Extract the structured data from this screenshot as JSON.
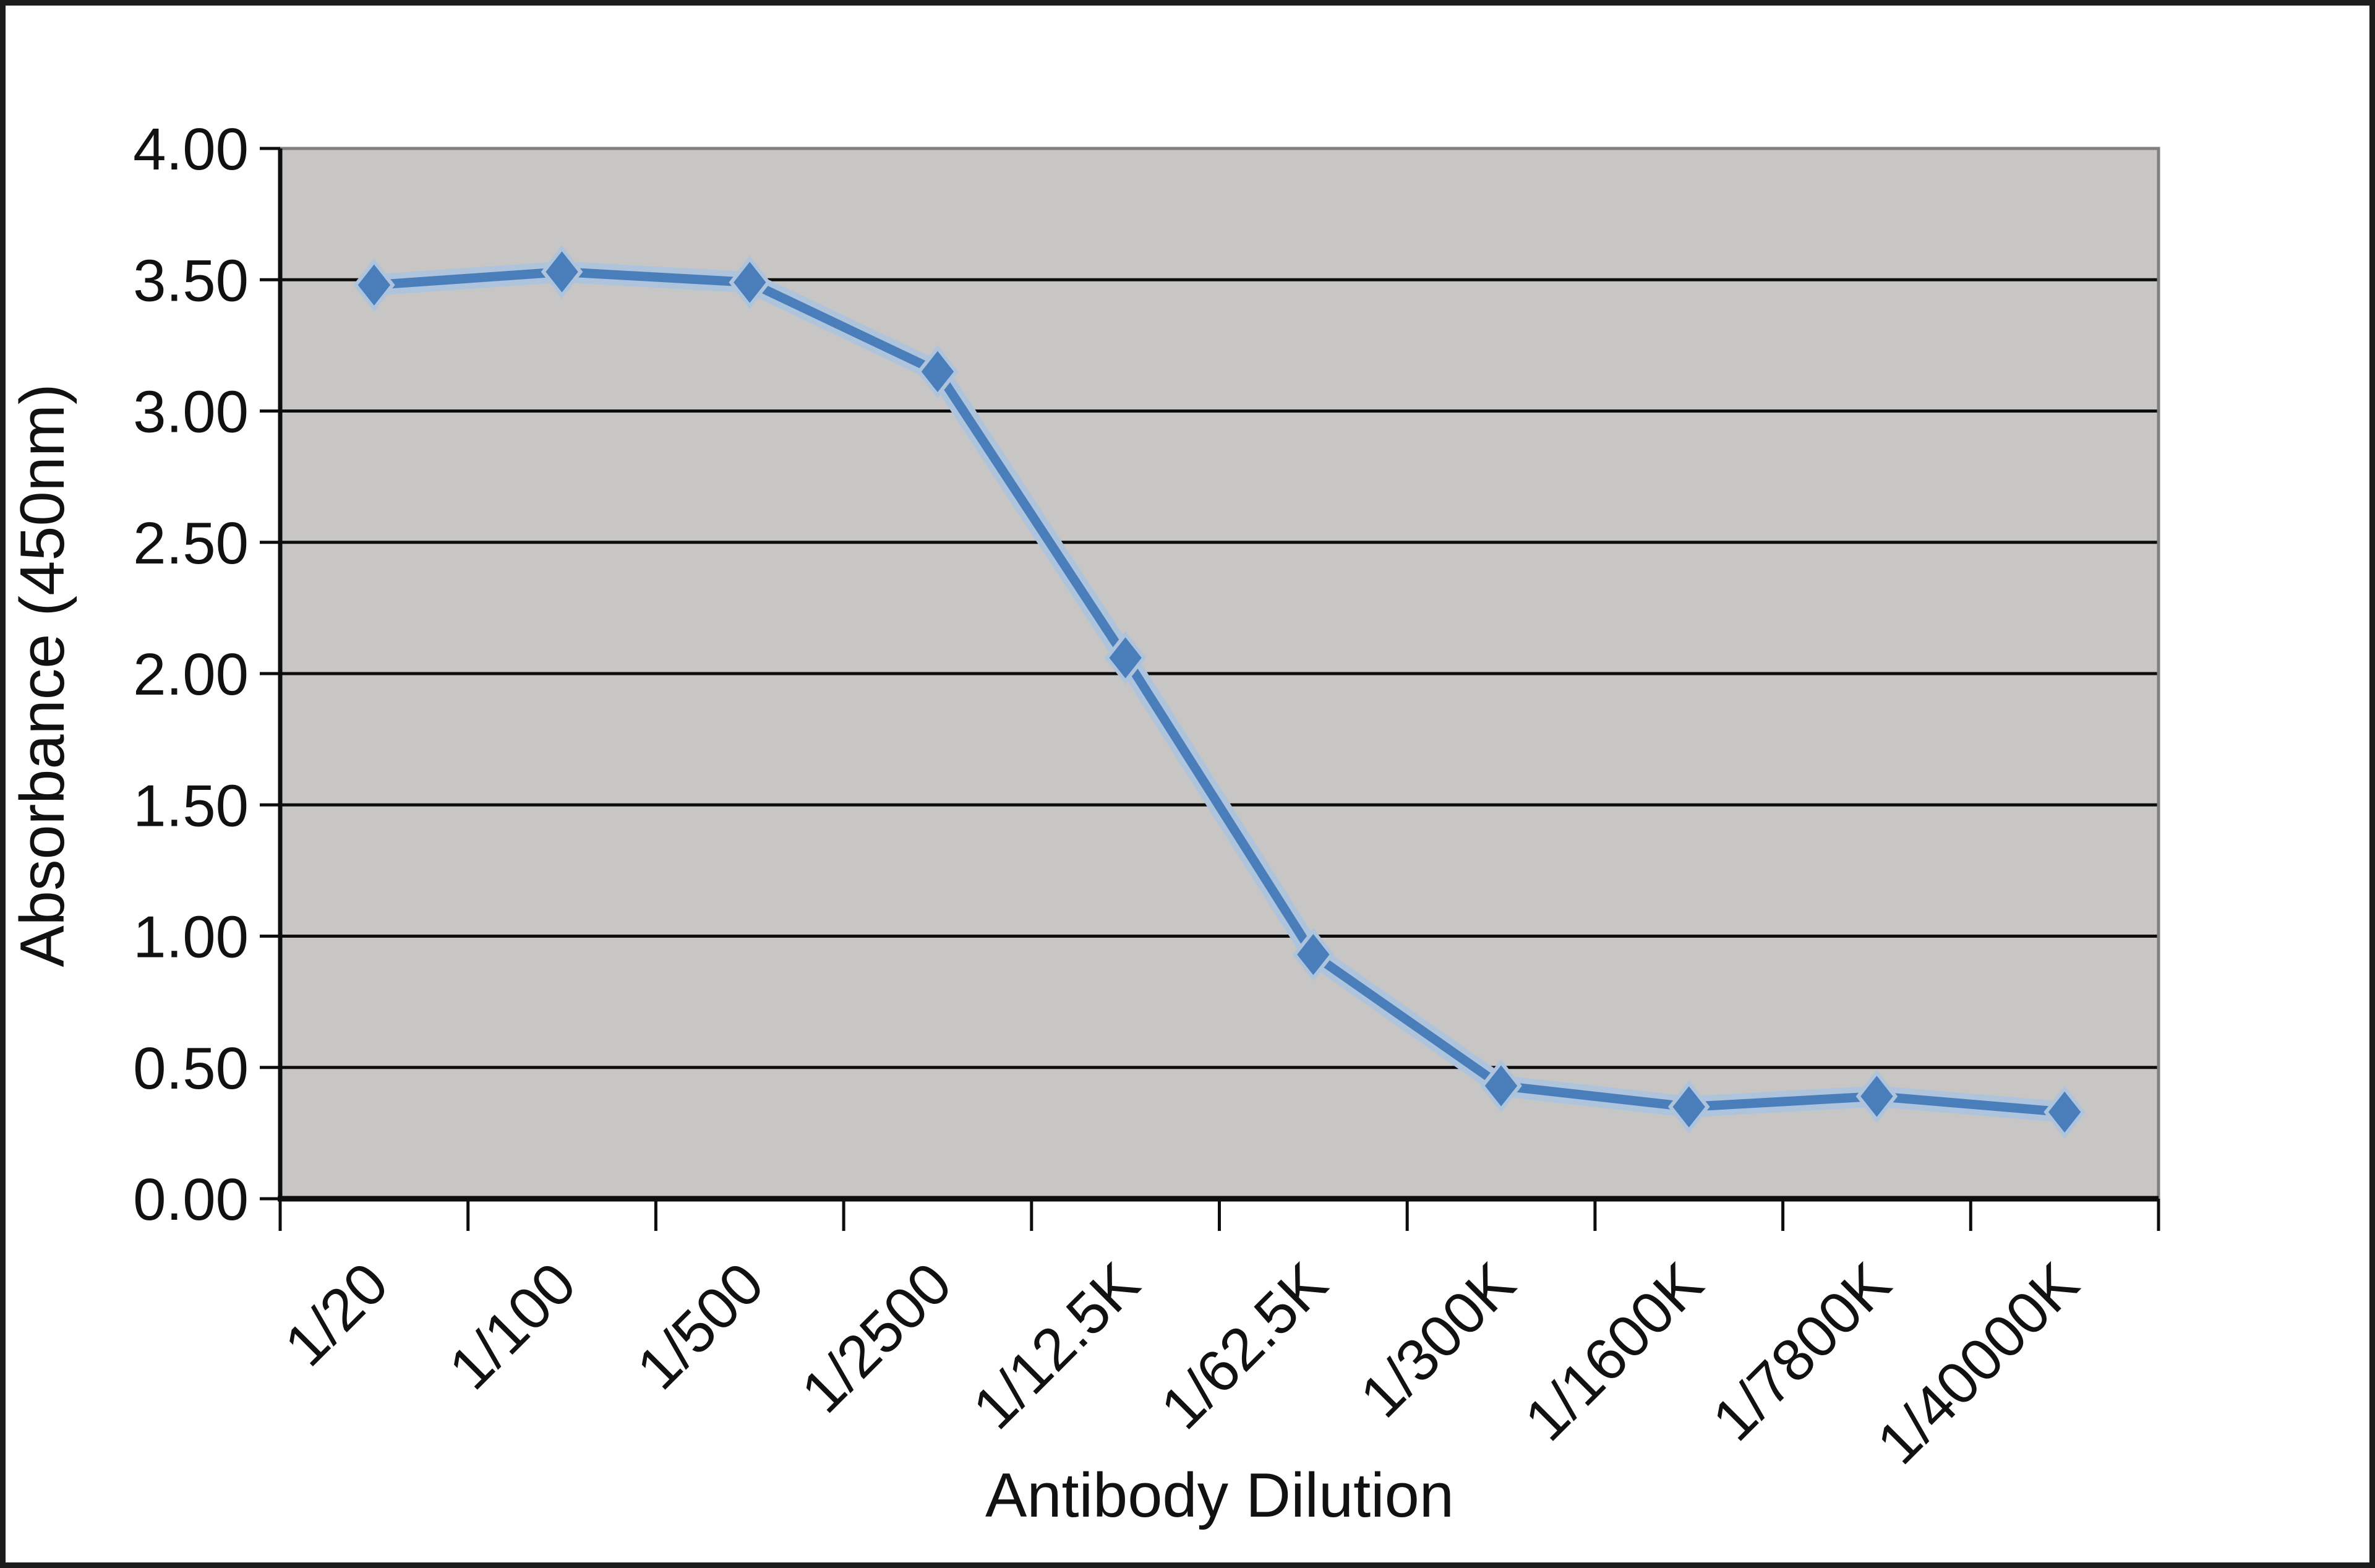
{
  "chart_data": {
    "type": "line",
    "title": "",
    "xlabel": "Antibody Dilution",
    "ylabel": "Absorbance (450nm)",
    "categories": [
      "1/20",
      "1/100",
      "1/500",
      "1/2500",
      "1/12.5K",
      "1/62.5K",
      "1/300K",
      "1/1600K",
      "1/7800K",
      "1/40000K"
    ],
    "values": [
      3.48,
      3.53,
      3.49,
      3.15,
      2.06,
      0.93,
      0.43,
      0.35,
      0.39,
      0.33
    ],
    "ylim": [
      0,
      4
    ],
    "ytick_step": 0.5,
    "ytick_labels": [
      "0.00",
      "0.50",
      "1.00",
      "1.50",
      "2.00",
      "2.50",
      "3.00",
      "3.50",
      "4.00"
    ],
    "grid": "horizontal-only",
    "legend": "none",
    "marker_shape": "diamond",
    "x_labels_rotated_degrees": 45,
    "colors": {
      "line": "#4a7ebb",
      "line_halo": "#aec3dc",
      "marker": "#4a7ebb",
      "plot_background": "#c7c6c4",
      "plot_border": "#7f7f7f",
      "gridline": "#0d0d0d",
      "axis": "#0d0d0d",
      "tick": "#0d0d0d",
      "text": "#111111",
      "page_background": "#ffffff",
      "frame_border": "#1c1c1c"
    }
  }
}
